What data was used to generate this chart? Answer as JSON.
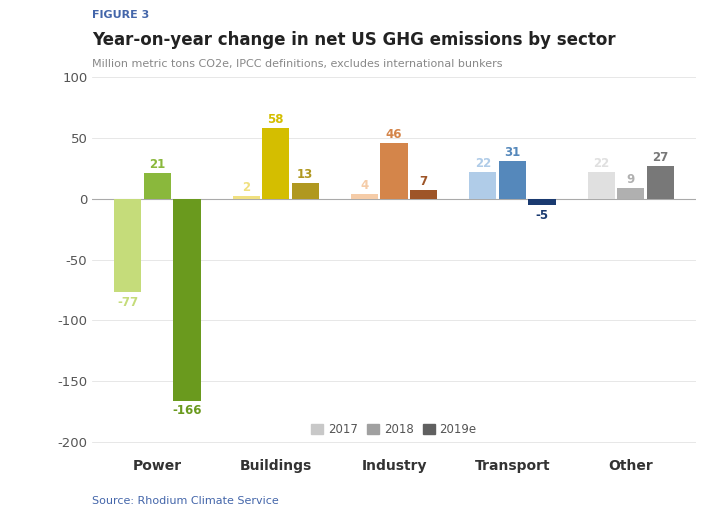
{
  "figure_label": "FIGURE 3",
  "title": "Year-on-year change in net US GHG emissions by sector",
  "subtitle": "Million metric tons CO2e, IPCC definitions, excludes international bunkers",
  "source": "Source: Rhodium Climate Service",
  "categories": [
    "Power",
    "Buildings",
    "Industry",
    "Transport",
    "Other"
  ],
  "years": [
    "2017",
    "2018",
    "2019e"
  ],
  "values": {
    "Power": [
      -77,
      21,
      -166
    ],
    "Buildings": [
      2,
      58,
      13
    ],
    "Industry": [
      4,
      46,
      7
    ],
    "Transport": [
      22,
      31,
      -5
    ],
    "Other": [
      22,
      9,
      27
    ]
  },
  "colors": {
    "Power": [
      "#c5dc7a",
      "#8ab83c",
      "#6a9a1e"
    ],
    "Buildings": [
      "#f0e080",
      "#d4be00",
      "#b09820"
    ],
    "Industry": [
      "#f5cca8",
      "#d4854a",
      "#9e5528"
    ],
    "Transport": [
      "#b0cce8",
      "#5588bb",
      "#2244880"
    ],
    "Other": [
      "#e0e0e0",
      "#b0b0b0",
      "#787878"
    ]
  },
  "transport_colors": [
    "#b0cce8",
    "#5588bb",
    "#1a3a70"
  ],
  "legend_colors": [
    "#c8c8c8",
    "#a0a0a0",
    "#606060"
  ],
  "ylim": [
    -210,
    100
  ],
  "yticks": [
    -200,
    -150,
    -100,
    -50,
    0,
    50,
    100
  ],
  "bar_width": 0.25,
  "figure_label_color": "#4466aa",
  "title_color": "#222222",
  "subtitle_color": "#888888",
  "source_color": "#4466aa",
  "value_fontsize": 8.5,
  "axis_fontsize": 9.5,
  "background_color": "#ffffff"
}
